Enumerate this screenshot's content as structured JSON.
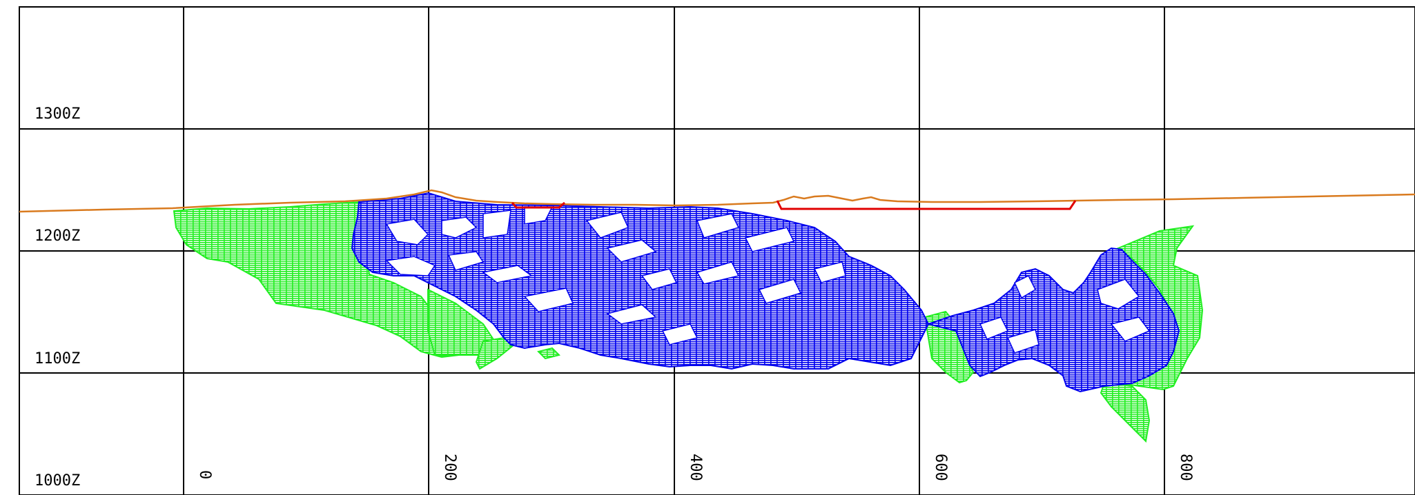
{
  "section": {
    "elevation_labels": [
      "1300Z",
      "1200Z",
      "1100Z",
      "1000Z"
    ],
    "easting_labels": [
      "0",
      "200",
      "400",
      "600",
      "800"
    ]
  },
  "colors": {
    "grid": "#000000",
    "topography": "#d97a1e",
    "pit_outline": "#e00000",
    "zone_blue": "#0000ee",
    "zone_green": "#22ee22"
  }
}
